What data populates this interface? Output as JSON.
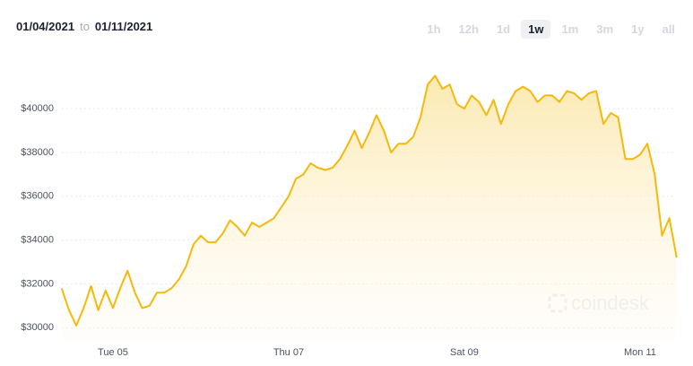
{
  "header": {
    "from": "01/04/2021",
    "to_word": "to",
    "to": "01/11/2021"
  },
  "range_buttons": [
    "1h",
    "12h",
    "1d",
    "1w",
    "1m",
    "3m",
    "1y",
    "all"
  ],
  "selected_range": "1w",
  "watermark": "coindesk",
  "chart_data": {
    "type": "line",
    "categories": [
      null,
      null,
      null,
      null,
      null,
      null,
      null,
      "Tue 05",
      null,
      null,
      null,
      null,
      null,
      null,
      null,
      null,
      null,
      null,
      null,
      null,
      null,
      null,
      null,
      null,
      null,
      null,
      null,
      null,
      null,
      null,
      null,
      "Thu 07",
      null,
      null,
      null,
      null,
      null,
      null,
      null,
      null,
      null,
      null,
      null,
      null,
      null,
      null,
      null,
      null,
      null,
      null,
      null,
      null,
      null,
      null,
      null,
      "Sat 09",
      null,
      null,
      null,
      null,
      null,
      null,
      null,
      null,
      null,
      null,
      null,
      null,
      null,
      null,
      null,
      null,
      null,
      null,
      null,
      null,
      null,
      null,
      null,
      "Mon 11",
      null,
      null,
      null,
      null,
      null
    ],
    "values": [
      31800,
      30800,
      30100,
      30900,
      31900,
      30800,
      31700,
      30900,
      31800,
      32600,
      31600,
      30900,
      31000,
      31600,
      31600,
      31800,
      32200,
      32800,
      33800,
      34200,
      33900,
      33900,
      34300,
      34900,
      34600,
      34200,
      34800,
      34600,
      34800,
      35000,
      35500,
      36000,
      36800,
      37000,
      37500,
      37300,
      37200,
      37300,
      37700,
      38300,
      39000,
      38200,
      38900,
      39700,
      39000,
      38000,
      38400,
      38400,
      38700,
      39600,
      41100,
      41500,
      40900,
      41100,
      40200,
      40000,
      40600,
      40300,
      39700,
      40400,
      39300,
      40200,
      40800,
      41000,
      40800,
      40300,
      40600,
      40600,
      40300,
      40800,
      40700,
      40400,
      40700,
      40800,
      39300,
      39800,
      39600,
      37700,
      37700,
      37900,
      38400,
      37000,
      34200,
      35000,
      33200
    ],
    "color": "#f4b90b",
    "ylim": [
      29400,
      42500
    ],
    "yticks": [
      {
        "value": 30000,
        "label": "$30000"
      },
      {
        "value": 32000,
        "label": "$32000"
      },
      {
        "value": 34000,
        "label": "$34000"
      },
      {
        "value": 36000,
        "label": "$36000"
      },
      {
        "value": 38000,
        "label": "$38000"
      },
      {
        "value": 40000,
        "label": "$40000"
      }
    ],
    "grid": true
  }
}
